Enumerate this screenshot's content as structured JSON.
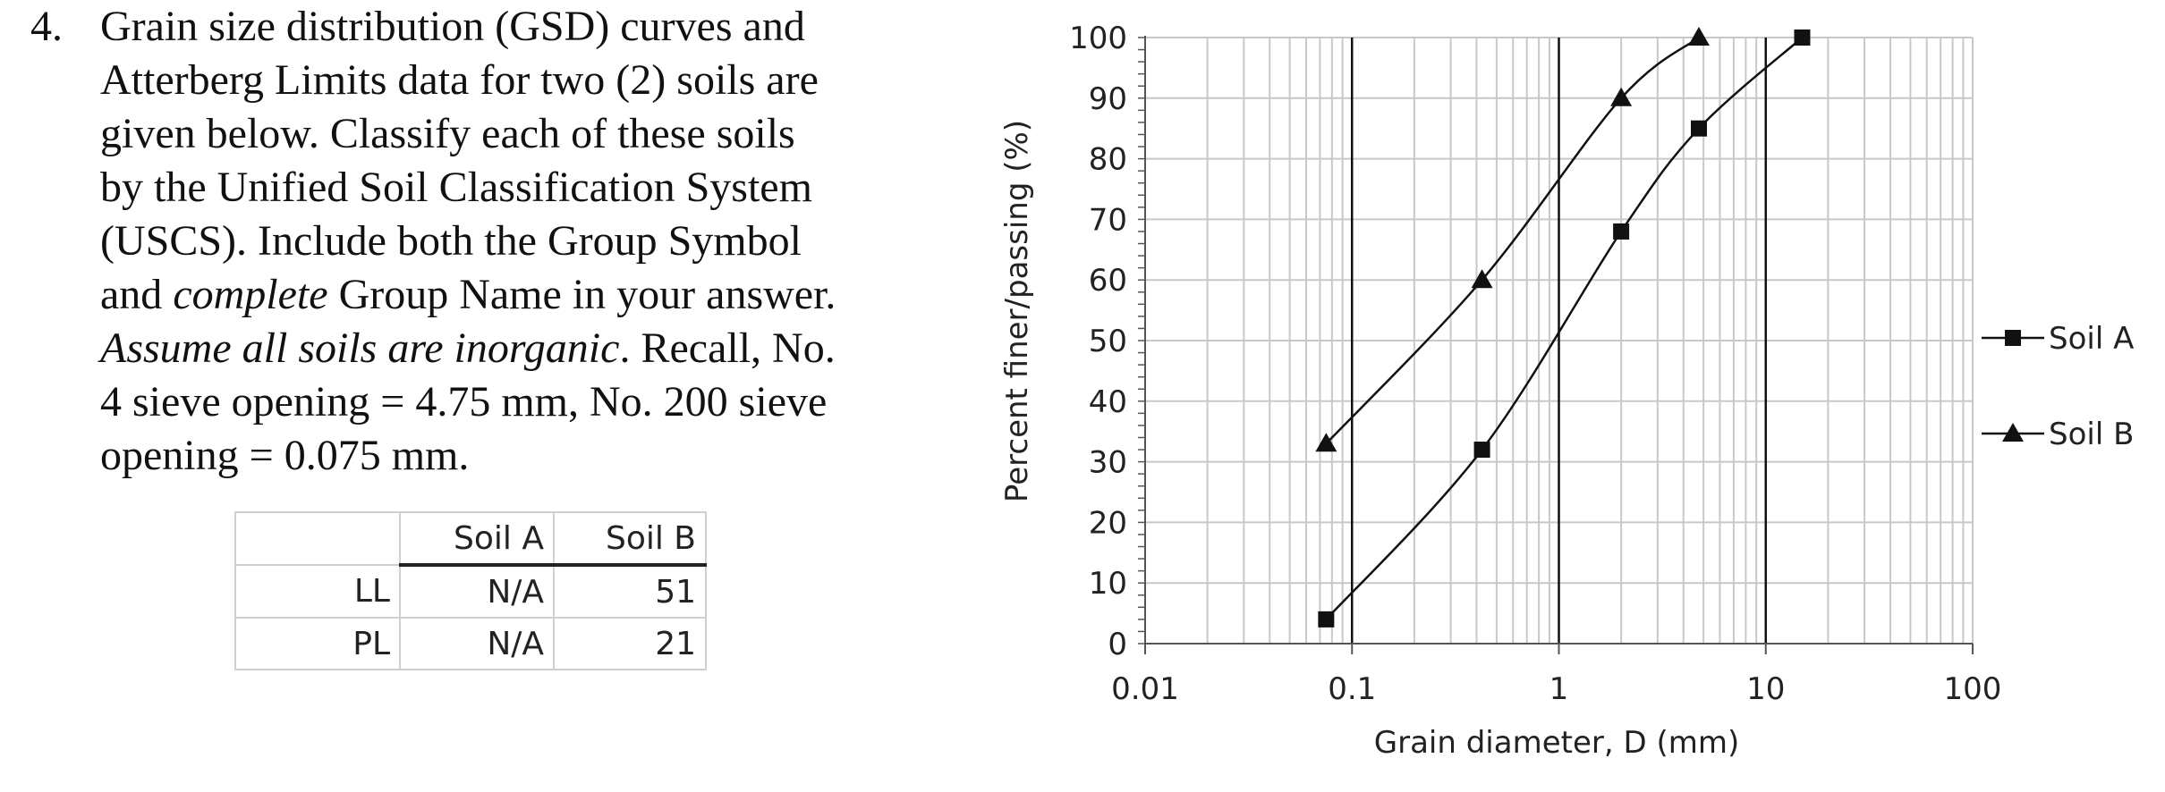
{
  "problem": {
    "number": "4.",
    "lines": [
      {
        "segments": [
          {
            "text": "Grain size distribution (GSD) curves and",
            "style": "normal"
          }
        ]
      },
      {
        "segments": [
          {
            "text": "Atterberg Limits data for two (2) soils are",
            "style": "normal"
          }
        ]
      },
      {
        "segments": [
          {
            "text": "given below.  Classify each of these soils",
            "style": "normal"
          }
        ]
      },
      {
        "segments": [
          {
            "text": "by the Unified Soil Classification System",
            "style": "normal"
          }
        ]
      },
      {
        "segments": [
          {
            "text": "(USCS).  Include both the Group Symbol",
            "style": "normal"
          }
        ]
      },
      {
        "segments": [
          {
            "text": "and ",
            "style": "normal"
          },
          {
            "text": "complete",
            "style": "italic"
          },
          {
            "text": " Group Name in your answer.",
            "style": "normal"
          }
        ]
      },
      {
        "segments": [
          {
            "text": "Assume all soils are inorganic",
            "style": "italic"
          },
          {
            "text": ".  Recall, No.",
            "style": "normal"
          }
        ]
      },
      {
        "segments": [
          {
            "text": "4 sieve opening = 4.75 mm, No. 200 sieve",
            "style": "normal"
          }
        ]
      },
      {
        "segments": [
          {
            "text": "opening = 0.075 mm.",
            "style": "normal"
          }
        ]
      }
    ]
  },
  "limits_table": {
    "headers": [
      "",
      "Soil A",
      "Soil B"
    ],
    "rows": [
      [
        "LL",
        "N/A",
        "51"
      ],
      [
        "PL",
        "N/A",
        "21"
      ]
    ]
  },
  "chart_data": {
    "type": "line",
    "title": "",
    "xlabel": "Grain diameter, D (mm)",
    "ylabel": "Percent finer/passing (%)",
    "x_scale": "log",
    "xlim": [
      0.01,
      100
    ],
    "ylim": [
      0,
      100
    ],
    "x_ticks": [
      "0.01",
      "0.1",
      "1",
      "10",
      "100"
    ],
    "y_ticks": [
      "0",
      "10",
      "20",
      "30",
      "40",
      "50",
      "60",
      "70",
      "80",
      "90",
      "100"
    ],
    "grid": true,
    "legend_position": "right",
    "series": [
      {
        "name": "Soil A",
        "marker": "square",
        "x": [
          0.075,
          0.425,
          2,
          4.75,
          15
        ],
        "y": [
          4,
          32,
          68,
          85,
          100
        ]
      },
      {
        "name": "Soil B",
        "marker": "triangle",
        "x": [
          0.075,
          0.425,
          2,
          4.75
        ],
        "y": [
          33,
          60,
          90,
          100
        ]
      }
    ],
    "colors": {
      "line": "#111111",
      "grid": "#c8c8c8",
      "decade": "#111111"
    }
  }
}
